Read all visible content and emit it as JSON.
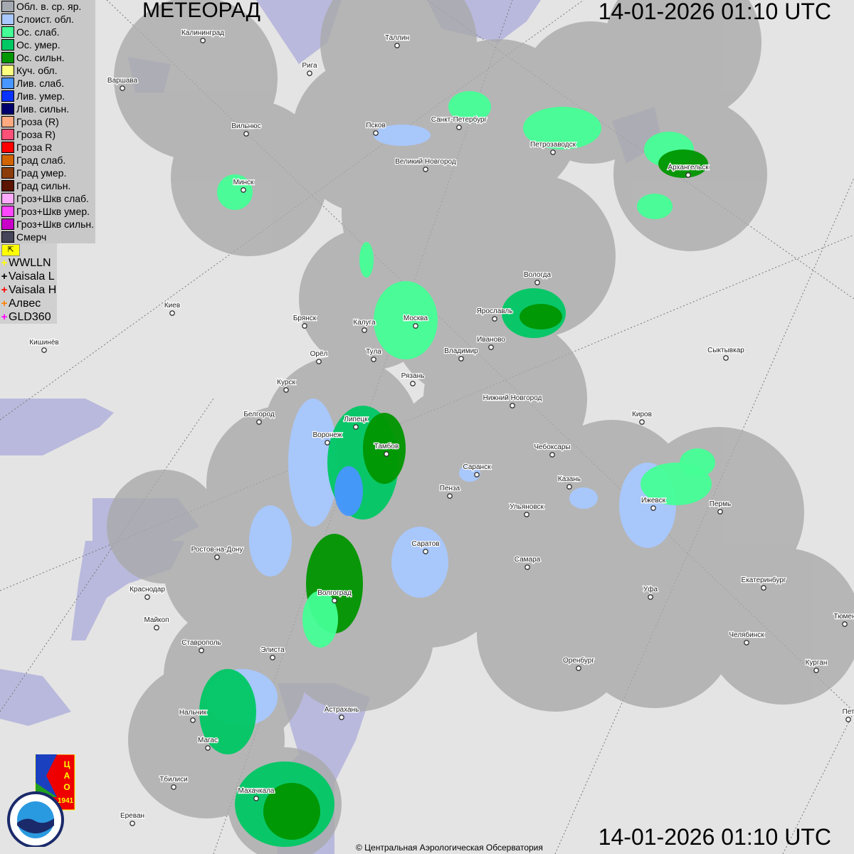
{
  "header": {
    "product": "МЕТЕОРАД",
    "timestamp": "14-01-2026  01:10 UTC"
  },
  "footer": {
    "timestamp": "14-01-2026  01:10 UTC",
    "credit": "© Центральная Аэрологическая Обсерватория"
  },
  "legend": {
    "items": [
      {
        "label": "Обл. в. ср. яр.",
        "color": "#a4aab0"
      },
      {
        "label": "Слоист. обл.",
        "color": "#a8c8ff"
      },
      {
        "label": "Ос. слаб.",
        "color": "#44ff96"
      },
      {
        "label": "Ос. умер.",
        "color": "#00c864"
      },
      {
        "label": "Ос. сильн.",
        "color": "#009600"
      },
      {
        "label": "Куч. обл.",
        "color": "#ffff80"
      },
      {
        "label": "Лив. слаб.",
        "color": "#4896ff"
      },
      {
        "label": "Лив. умер.",
        "color": "#0a32ff"
      },
      {
        "label": "Лив. сильн.",
        "color": "#00006e"
      },
      {
        "label": "Гроза (R)",
        "color": "#ffaa80"
      },
      {
        "label": "Гроза R)",
        "color": "#ff5078"
      },
      {
        "label": "Гроза R",
        "color": "#ff0000"
      },
      {
        "label": "Град слаб.",
        "color": "#d26400"
      },
      {
        "label": "Град умер.",
        "color": "#8c3c0a"
      },
      {
        "label": "Град сильн.",
        "color": "#5a1400"
      },
      {
        "label": "Гроз+Шкв слаб.",
        "color": "#ffaaff"
      },
      {
        "label": "Гроз+Шкв умер.",
        "color": "#ff46ff"
      },
      {
        "label": "Гроз+Шкв сильн.",
        "color": "#c800c8"
      },
      {
        "label": "Смерч",
        "color": "#46465a"
      }
    ],
    "toggle_icon": "corner-arrow-icon",
    "lightning": [
      {
        "label": "WWLLN",
        "color": "#ffff00"
      },
      {
        "label": "Vaisala L",
        "color": "#000000"
      },
      {
        "label": "Vaisala H",
        "color": "#ff0000"
      },
      {
        "label": "Алвес",
        "color": "#ff8000"
      },
      {
        "label": "GLD360",
        "color": "#ff00ff"
      }
    ]
  },
  "cities": [
    "Калининград",
    "Таллин",
    "Рига",
    "Варшава",
    "Вильнюс",
    "Псков",
    "Санкт-Петербург",
    "Петрозаводск",
    "Архангельск",
    "Великий Новгород",
    "Минск",
    "Вологда",
    "Ярославль",
    "Киев",
    "Брянск",
    "Калуга",
    "Москва",
    "Иваново",
    "Владимир",
    "Кишинёв",
    "Орёл",
    "Тула",
    "Рязань",
    "Сыктывкар",
    "Курск",
    "Нижний Новгород",
    "Белгород",
    "Липецк",
    "Киров",
    "Воронеж",
    "Тамбов",
    "Чебоксары",
    "Саранск",
    "Казань",
    "Пенза",
    "Ижевск",
    "Пермь",
    "Ульяновск",
    "Саратов",
    "Ростов-на-Дону",
    "Самара",
    "Краснодар",
    "Волгоград",
    "Екатеринбург",
    "Уфа",
    "Тюмен",
    "Майкоп",
    "Челябинск",
    "Ставрополь",
    "Элиста",
    "Оренбург",
    "Курган",
    "Астрахань",
    "Пет",
    "Нальчик",
    "Магас",
    "Тбилиси",
    "Махачкала",
    "Ереван"
  ],
  "logos": {
    "cao": "ЦАО 1941",
    "roshydromet": "РОСГИДРОМЕТ ROSHYDROMET"
  },
  "colors": {
    "land": "#e4e4e4",
    "water": "#b9b9dd",
    "coverage": "#a9a9a9"
  }
}
